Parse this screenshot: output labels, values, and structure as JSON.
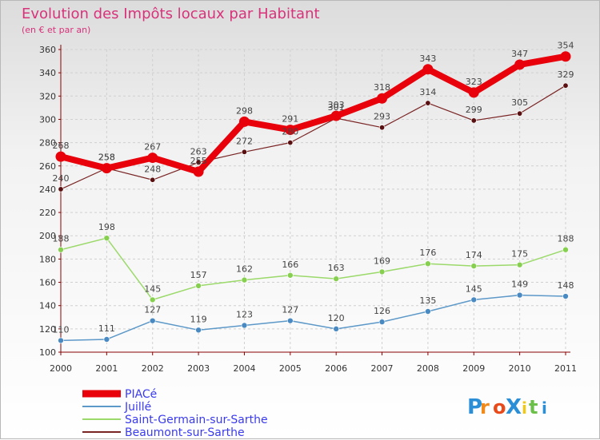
{
  "chart_data": {
    "type": "line",
    "title": "Evolution des Impôts locaux par Habitant",
    "subtitle": "(en € et par an)",
    "x": [
      "2000",
      "2001",
      "2002",
      "2003",
      "2004",
      "2005",
      "2006",
      "2007",
      "2008",
      "2009",
      "2010",
      "2011"
    ],
    "ylim": [
      100,
      360
    ],
    "yticks": [
      100,
      120,
      140,
      160,
      180,
      200,
      220,
      240,
      260,
      280,
      300,
      320,
      340,
      360
    ],
    "grid": true,
    "legend_position": "bottom-left",
    "series": [
      {
        "name": "PIACé",
        "color": "#e8000b",
        "values": [
          268,
          258,
          267,
          255,
          298,
          291,
          303,
          318,
          343,
          323,
          347,
          354
        ]
      },
      {
        "name": "Juillé",
        "color": "#5c98c8",
        "values": [
          110,
          111,
          127,
          119,
          123,
          127,
          120,
          126,
          135,
          145,
          149,
          148
        ]
      },
      {
        "name": "Saint-Germain-sur-Sarthe",
        "color": "#9bd96a",
        "values": [
          188,
          198,
          145,
          157,
          162,
          166,
          163,
          169,
          176,
          174,
          175,
          188
        ]
      },
      {
        "name": "Beaumont-sur-Sarthe",
        "color": "#6b1b1b",
        "values": [
          240,
          258,
          248,
          263,
          272,
          280,
          301,
          293,
          314,
          299,
          305,
          329
        ]
      }
    ]
  },
  "logo_text": "ProXiti"
}
